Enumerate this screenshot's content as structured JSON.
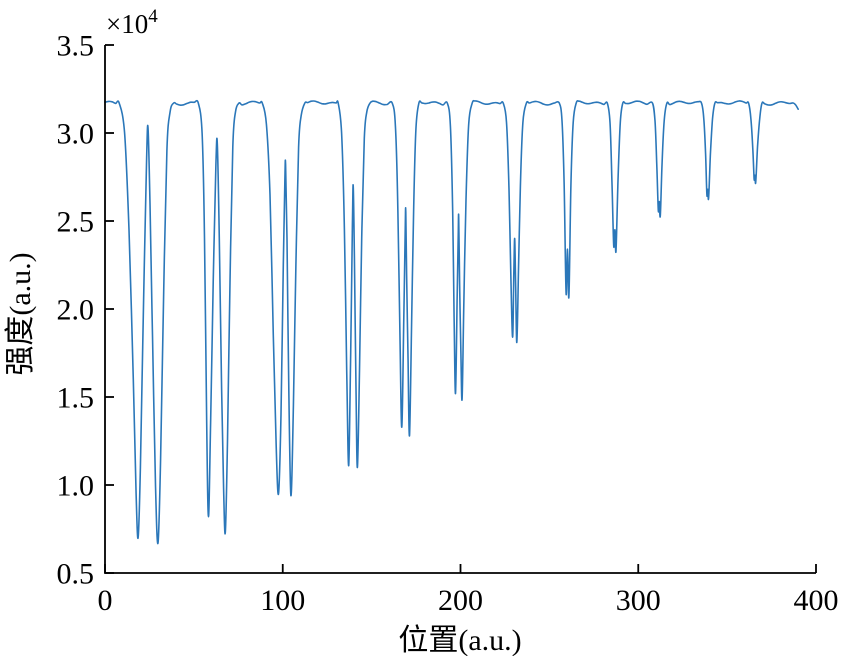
{
  "figure": {
    "background": "#ffffff",
    "axis_color": "#000000"
  },
  "chart_data": {
    "type": "line",
    "title": "",
    "xlabel": "位置(a.u.)",
    "ylabel": "强度(a.u.)",
    "offset_base": "×10",
    "offset_exp": "4",
    "unit_scale": 10000,
    "xlim": [
      0,
      400
    ],
    "ylim": [
      0.5,
      3.5
    ],
    "x_ticks": [
      0,
      100,
      200,
      300,
      400
    ],
    "y_ticks": [
      0.5,
      1.0,
      1.5,
      2.0,
      2.5,
      3.0,
      3.5
    ],
    "grid": false,
    "legend": "none",
    "line_color": "#2b77b9",
    "baseline": 3.17,
    "baseline_wiggle": {
      "a1": 0.007,
      "f1": 0.55,
      "a2": 0.005,
      "f2": 0.21,
      "p2": 2
    },
    "x_start": 0,
    "x_end": 390,
    "end_anchors": [
      [
        388.5,
        3.16
      ],
      [
        390,
        3.135
      ]
    ],
    "groups": [
      {
        "name": "doublet-1",
        "summary": {
          "center": 24.2,
          "dip1_x": 18.6,
          "dip1_y": 0.7,
          "dip2_x": 29.8,
          "dip2_y": 0.67,
          "window_peak_y": 3.03
        },
        "anchors": [
          [
            8,
            3.17
          ],
          [
            11,
            3.0
          ],
          [
            13.5,
            2.45
          ],
          [
            15.9,
            1.6
          ],
          [
            17.5,
            0.95
          ],
          [
            18.6,
            0.7
          ],
          [
            19.9,
            1.1
          ],
          [
            21.7,
            2.05
          ],
          [
            23.4,
            2.85
          ],
          [
            24.2,
            3.03
          ],
          [
            25.3,
            2.6
          ],
          [
            26.7,
            1.85
          ],
          [
            28.4,
            1.0
          ],
          [
            29.8,
            0.67
          ],
          [
            31.3,
            1.15
          ],
          [
            33,
            2.1
          ],
          [
            34.8,
            2.9
          ],
          [
            36.6,
            3.12
          ],
          [
            38.6,
            3.17
          ]
        ]
      },
      {
        "name": "doublet-2",
        "summary": {
          "center": 63.2,
          "dip1_x": 58.2,
          "dip1_y": 0.82,
          "dip2_x": 67.7,
          "dip2_y": 0.73,
          "window_peak_y": 2.94
        },
        "anchors": [
          [
            52.5,
            3.17
          ],
          [
            54.6,
            3.0
          ],
          [
            56,
            2.4
          ],
          [
            57.2,
            1.35
          ],
          [
            58.2,
            0.82
          ],
          [
            59.4,
            1.35
          ],
          [
            60.9,
            2.15
          ],
          [
            62.4,
            2.82
          ],
          [
            63.2,
            2.94
          ],
          [
            64.3,
            2.4
          ],
          [
            65.6,
            1.55
          ],
          [
            66.7,
            0.98
          ],
          [
            67.7,
            0.73
          ],
          [
            68.9,
            1.25
          ],
          [
            70.3,
            2.15
          ],
          [
            71.9,
            2.92
          ],
          [
            73.4,
            3.12
          ],
          [
            75.4,
            3.17
          ]
        ]
      },
      {
        "name": "doublet-3",
        "summary": {
          "center": 101.6,
          "dip1_x": 97.6,
          "dip1_y": 0.95,
          "dip2_x": 104.6,
          "dip2_y": 0.94,
          "window_peak_y": 2.82
        },
        "anchors": [
          [
            88.5,
            3.17
          ],
          [
            90.8,
            3.05
          ],
          [
            92.8,
            2.65
          ],
          [
            94.7,
            1.85
          ],
          [
            96.3,
            1.22
          ],
          [
            97.6,
            0.95
          ],
          [
            99,
            1.4
          ],
          [
            100.3,
            2.25
          ],
          [
            101.2,
            2.74
          ],
          [
            101.6,
            2.82
          ],
          [
            102.4,
            2.4
          ],
          [
            103.4,
            1.55
          ],
          [
            104.6,
            0.94
          ],
          [
            106,
            1.45
          ],
          [
            107.4,
            2.25
          ],
          [
            108.9,
            2.92
          ],
          [
            110.4,
            3.1
          ],
          [
            112.4,
            3.17
          ]
        ]
      },
      {
        "name": "doublet-4",
        "summary": {
          "center": 139.6,
          "dip1_x": 137.1,
          "dip1_y": 1.11,
          "dip2_x": 142.0,
          "dip2_y": 1.1,
          "window_peak_y": 2.7
        },
        "anchors": [
          [
            131.2,
            3.17
          ],
          [
            133.1,
            3.0
          ],
          [
            134.7,
            2.45
          ],
          [
            136,
            1.65
          ],
          [
            137.1,
            1.11
          ],
          [
            138.2,
            1.75
          ],
          [
            139.2,
            2.48
          ],
          [
            139.65,
            2.7
          ],
          [
            140.3,
            2.3
          ],
          [
            141.2,
            1.55
          ],
          [
            142,
            1.1
          ],
          [
            143.2,
            1.65
          ],
          [
            144.4,
            2.4
          ],
          [
            145.9,
            2.97
          ],
          [
            147.3,
            3.12
          ],
          [
            149.1,
            3.17
          ]
        ]
      },
      {
        "name": "doublet-5",
        "summary": {
          "center": 169.2,
          "dip1_x": 167.0,
          "dip1_y": 1.33,
          "dip2_x": 171.3,
          "dip2_y": 1.28,
          "window_peak_y": 2.55
        },
        "anchors": [
          [
            161.6,
            3.17
          ],
          [
            163.4,
            3.04
          ],
          [
            164.8,
            2.55
          ],
          [
            166,
            1.8
          ],
          [
            167,
            1.33
          ],
          [
            168.1,
            1.95
          ],
          [
            168.95,
            2.48
          ],
          [
            169.2,
            2.55
          ],
          [
            169.7,
            2.2
          ],
          [
            170.5,
            1.7
          ],
          [
            171.3,
            1.28
          ],
          [
            172.4,
            1.85
          ],
          [
            173.6,
            2.55
          ],
          [
            174.9,
            3.02
          ],
          [
            176.6,
            3.17
          ]
        ]
      },
      {
        "name": "doublet-6",
        "summary": {
          "center": 199.0,
          "dip1_x": 197.2,
          "dip1_y": 1.52,
          "dip2_x": 200.9,
          "dip2_y": 1.49,
          "window_peak_y": 2.52
        },
        "anchors": [
          [
            192.6,
            3.17
          ],
          [
            194.3,
            3.04
          ],
          [
            195.6,
            2.55
          ],
          [
            196.4,
            1.95
          ],
          [
            197.2,
            1.52
          ],
          [
            198.1,
            2.05
          ],
          [
            198.75,
            2.44
          ],
          [
            199,
            2.52
          ],
          [
            199.5,
            2.15
          ],
          [
            200.2,
            1.75
          ],
          [
            200.9,
            1.49
          ],
          [
            201.9,
            2.05
          ],
          [
            203.1,
            2.62
          ],
          [
            204.6,
            3.05
          ],
          [
            206.6,
            3.17
          ]
        ]
      },
      {
        "name": "doublet-7",
        "summary": {
          "center": 230.5,
          "dip1_x": 229.3,
          "dip1_y": 1.84,
          "dip2_x": 231.7,
          "dip2_y": 1.81,
          "window_peak_y": 2.4
        },
        "anchors": [
          [
            224,
            3.17
          ],
          [
            225.9,
            3.06
          ],
          [
            227.3,
            2.68
          ],
          [
            228.3,
            2.2
          ],
          [
            229.3,
            1.84
          ],
          [
            230,
            2.2
          ],
          [
            230.5,
            2.4
          ],
          [
            231.05,
            2.12
          ],
          [
            231.7,
            1.81
          ],
          [
            232.6,
            2.2
          ],
          [
            233.7,
            2.7
          ],
          [
            235.1,
            3.06
          ],
          [
            237.1,
            3.17
          ]
        ]
      },
      {
        "name": "doublet-8",
        "summary": {
          "center": 260.2,
          "dip1_x": 259.4,
          "dip1_y": 2.09,
          "dip2_x": 261.0,
          "dip2_y": 2.07,
          "window_peak_y": 2.34
        },
        "anchors": [
          [
            255.6,
            3.17
          ],
          [
            257.1,
            3.07
          ],
          [
            258.3,
            2.72
          ],
          [
            259.4,
            2.09
          ],
          [
            260.2,
            2.34
          ],
          [
            261,
            2.07
          ],
          [
            262.1,
            2.7
          ],
          [
            263.4,
            3.06
          ],
          [
            265.1,
            3.17
          ]
        ]
      },
      {
        "name": "doublet-9",
        "summary": {
          "center": 286.85,
          "dip1_x": 286.2,
          "dip1_y": 2.36,
          "dip2_x": 287.5,
          "dip2_y": 2.33,
          "window_peak_y": 2.45
        },
        "anchors": [
          [
            282.6,
            3.17
          ],
          [
            284.1,
            3.06
          ],
          [
            285.2,
            2.73
          ],
          [
            286.2,
            2.36
          ],
          [
            286.85,
            2.45
          ],
          [
            287.5,
            2.33
          ],
          [
            288.6,
            2.73
          ],
          [
            289.9,
            3.06
          ],
          [
            291.3,
            3.17
          ]
        ]
      },
      {
        "name": "doublet-10",
        "summary": {
          "center": 311.85,
          "dip1_x": 311.3,
          "dip1_y": 2.56,
          "dip2_x": 312.4,
          "dip2_y": 2.53,
          "window_peak_y": 2.61
        },
        "anchors": [
          [
            308,
            3.17
          ],
          [
            309.4,
            3.07
          ],
          [
            310.4,
            2.83
          ],
          [
            311.3,
            2.56
          ],
          [
            311.85,
            2.61
          ],
          [
            312.4,
            2.53
          ],
          [
            313.4,
            2.83
          ],
          [
            314.6,
            3.07
          ],
          [
            316.1,
            3.17
          ]
        ]
      },
      {
        "name": "doublet-11",
        "summary": {
          "center": 339.1,
          "dip1_x": 338.6,
          "dip1_y": 2.65,
          "dip2_x": 339.6,
          "dip2_y": 2.63,
          "window_peak_y": 2.68
        },
        "anchors": [
          [
            335.6,
            3.17
          ],
          [
            336.9,
            3.08
          ],
          [
            337.9,
            2.88
          ],
          [
            338.6,
            2.65
          ],
          [
            339.1,
            2.68
          ],
          [
            339.6,
            2.63
          ],
          [
            340.6,
            2.88
          ],
          [
            341.8,
            3.08
          ],
          [
            343.1,
            3.17
          ]
        ]
      },
      {
        "name": "doublet-12",
        "summary": {
          "center": 365.65,
          "dip1_x": 365.2,
          "dip1_y": 2.74,
          "dip2_x": 366.1,
          "dip2_y": 2.72,
          "window_peak_y": 2.76
        },
        "anchors": [
          [
            362.1,
            3.17
          ],
          [
            363.4,
            3.08
          ],
          [
            364.4,
            2.92
          ],
          [
            365.2,
            2.74
          ],
          [
            365.65,
            2.76
          ],
          [
            366.1,
            2.72
          ],
          [
            367.1,
            2.92
          ],
          [
            368.3,
            3.08
          ],
          [
            369.6,
            3.17
          ]
        ]
      }
    ]
  }
}
